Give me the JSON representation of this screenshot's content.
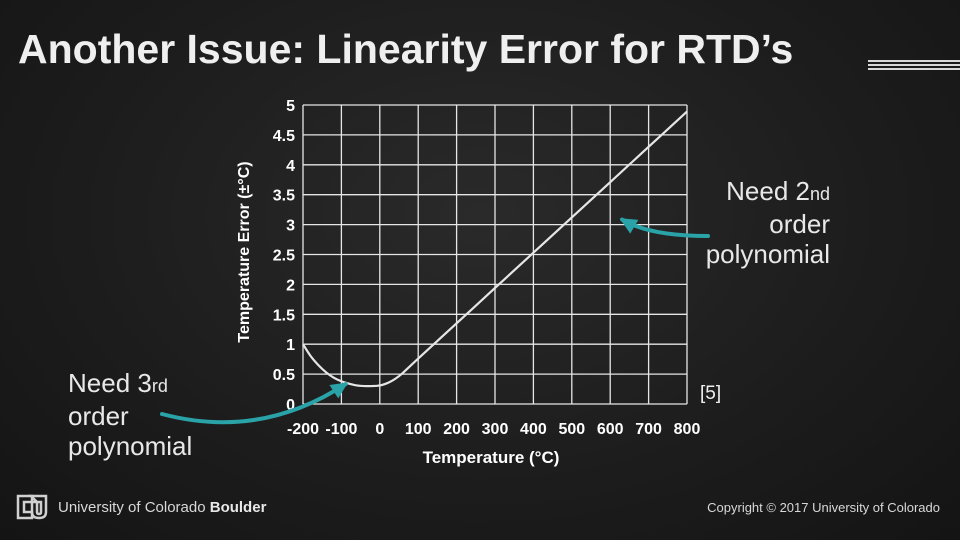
{
  "slide": {
    "title": "Another Issue: Linearity Error for RTD’s",
    "reference": "[5]",
    "university_name": "University of Colorado",
    "university_campus": "Boulder",
    "copyright": "Copyright © 2017 University of Colorado"
  },
  "annotations": {
    "right": {
      "line1_main": "Need 2",
      "line1_suffix": "nd",
      "line2": "order",
      "line3": "polynomial"
    },
    "left": {
      "line1_main": "Need 3",
      "line1_suffix": "rd",
      "line2": "order",
      "line3": "polynomial"
    }
  },
  "colors": {
    "background": "#1c1c1c",
    "grid": "#e6e6e6",
    "curve": "#e6e6e6",
    "arrow": "#2aa3a8",
    "text": "#ffffff"
  },
  "chart_data": {
    "type": "line",
    "title": "",
    "xlabel": "Temperature (°C)",
    "ylabel": "Temperature Error (±°C)",
    "xlim": [
      -200,
      800
    ],
    "ylim": [
      0,
      5
    ],
    "x_ticks": [
      -200,
      -100,
      0,
      100,
      200,
      300,
      400,
      500,
      600,
      700,
      800
    ],
    "x_tick_labels": [
      "-200",
      "-100",
      "0",
      "100",
      "200",
      "300",
      "400",
      "500",
      "600",
      "700",
      "800"
    ],
    "y_ticks": [
      0,
      0.5,
      1,
      1.5,
      2,
      2.5,
      3,
      3.5,
      4,
      4.5,
      5
    ],
    "y_tick_labels": [
      "0",
      "0.5",
      "1",
      "1.5",
      "2",
      "2.5",
      "3",
      "3.5",
      "4",
      "4.5",
      "5"
    ],
    "grid": true,
    "series": [
      {
        "name": "Linearity Error",
        "x": [
          -200,
          -180,
          -160,
          -140,
          -120,
          -100,
          -80,
          -60,
          -40,
          -20,
          0,
          20,
          40,
          60,
          100,
          200,
          300,
          400,
          500,
          600,
          700,
          800
        ],
        "y": [
          1.0,
          0.8,
          0.65,
          0.53,
          0.44,
          0.38,
          0.34,
          0.31,
          0.3,
          0.3,
          0.31,
          0.35,
          0.42,
          0.52,
          0.76,
          1.35,
          1.94,
          2.53,
          3.12,
          3.71,
          4.3,
          4.89
        ]
      }
    ],
    "arrows": [
      {
        "label": "Need 2nd order polynomial",
        "target": [
          600,
          3.15
        ]
      },
      {
        "label": "Need 3rd order polynomial",
        "target": [
          -110,
          0.3
        ]
      }
    ]
  }
}
